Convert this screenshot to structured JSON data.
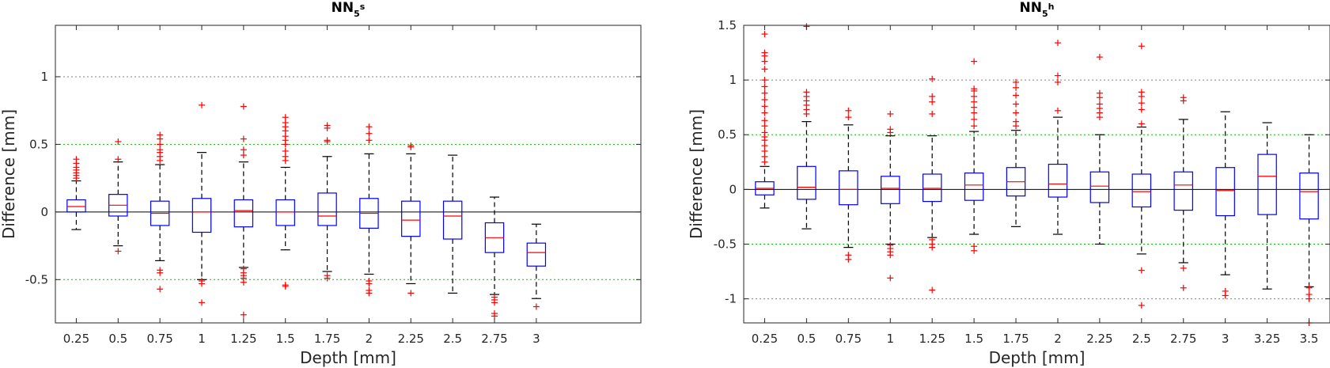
{
  "colors": {
    "box": "#0000ff",
    "median": "#ff0000",
    "outlier": "#ff0000",
    "whisker": "#000000",
    "grid_minor": "#00c000",
    "grid_major": "#808080",
    "axis": "#262626"
  },
  "chart_data": [
    {
      "type": "box",
      "title": {
        "base": "NN",
        "sub": "5",
        "sup": "s"
      },
      "xlabel": "Depth [mm]",
      "ylabel": "Difference [mm]",
      "ylim": [
        -0.82,
        1.38
      ],
      "yticks": [
        -0.5,
        0,
        0.5,
        1
      ],
      "ytick_labels": [
        "-0.5",
        "0",
        "0.5",
        "1"
      ],
      "grid_lines": [
        {
          "y": 1,
          "style": "major"
        },
        {
          "y": 0.5,
          "style": "minor"
        },
        {
          "y": -0.5,
          "style": "minor"
        }
      ],
      "zero_line": true,
      "slots": 14,
      "categories": [
        "0.25",
        "0.5",
        "0.75",
        "1",
        "1.25",
        "1.5",
        "1.75",
        "2",
        "2.25",
        "2.5",
        "2.75",
        "3"
      ],
      "boxes": [
        {
          "q1": 0.0,
          "median": 0.04,
          "q3": 0.09,
          "whisker_low": -0.13,
          "whisker_high": 0.23,
          "outliers": [
            0.25,
            0.27,
            0.29,
            0.31,
            0.33,
            0.36,
            0.39
          ]
        },
        {
          "q1": -0.03,
          "median": 0.05,
          "q3": 0.13,
          "whisker_low": -0.25,
          "whisker_high": 0.37,
          "outliers": [
            -0.29,
            0.39,
            0.52
          ]
        },
        {
          "q1": -0.1,
          "median": -0.01,
          "q3": 0.08,
          "whisker_low": -0.36,
          "whisker_high": 0.35,
          "outliers": [
            -0.43,
            -0.45,
            -0.57,
            0.38,
            0.41,
            0.44,
            0.46,
            0.5,
            0.54,
            0.57
          ]
        },
        {
          "q1": -0.15,
          "median": 0.0,
          "q3": 0.1,
          "whisker_low": -0.5,
          "whisker_high": 0.44,
          "outliers": [
            -0.51,
            -0.53,
            -0.67,
            0.79
          ]
        },
        {
          "q1": -0.11,
          "median": 0.01,
          "q3": 0.09,
          "whisker_low": -0.41,
          "whisker_high": 0.37,
          "outliers": [
            -0.42,
            -0.45,
            -0.47,
            -0.49,
            -0.52,
            -0.76,
            0.42,
            0.46,
            0.54,
            0.78
          ]
        },
        {
          "q1": -0.1,
          "median": 0.0,
          "q3": 0.09,
          "whisker_low": -0.28,
          "whisker_high": 0.33,
          "outliers": [
            -0.54,
            -0.55,
            0.38,
            0.41,
            0.45,
            0.5,
            0.53,
            0.56,
            0.6,
            0.63,
            0.66,
            0.7
          ]
        },
        {
          "q1": -0.1,
          "median": -0.03,
          "q3": 0.14,
          "whisker_low": -0.44,
          "whisker_high": 0.41,
          "outliers": [
            -0.47,
            -0.49,
            0.52,
            0.53,
            0.62,
            0.64
          ]
        },
        {
          "q1": -0.12,
          "median": -0.01,
          "q3": 0.1,
          "whisker_low": -0.46,
          "whisker_high": 0.43,
          "outliers": [
            -0.51,
            -0.53,
            -0.58,
            -0.6,
            0.53,
            0.58,
            0.63
          ]
        },
        {
          "q1": -0.18,
          "median": -0.06,
          "q3": 0.08,
          "whisker_low": -0.53,
          "whisker_high": 0.43,
          "outliers": [
            -0.6,
            0.48,
            0.49
          ]
        },
        {
          "q1": -0.2,
          "median": -0.03,
          "q3": 0.08,
          "whisker_low": -0.6,
          "whisker_high": 0.42,
          "outliers": []
        },
        {
          "q1": -0.3,
          "median": -0.19,
          "q3": -0.08,
          "whisker_low": -0.61,
          "whisker_high": 0.11,
          "outliers": [
            -0.63,
            -0.65,
            -0.67,
            -0.75,
            -0.77
          ]
        },
        {
          "q1": -0.4,
          "median": -0.3,
          "q3": -0.23,
          "whisker_low": -0.64,
          "whisker_high": -0.09,
          "outliers": [
            -0.7
          ]
        }
      ]
    },
    {
      "type": "box",
      "title": {
        "base": "NN",
        "sub": "5",
        "sup": "h"
      },
      "xlabel": "Depth [mm]",
      "ylabel": "Difference [mm]",
      "ylim": [
        -1.22,
        1.5
      ],
      "yticks": [
        -1,
        -0.5,
        0,
        0.5,
        1,
        1.5
      ],
      "ytick_labels": [
        "-1",
        "-0.5",
        "0",
        "0.5",
        "1",
        "1.5"
      ],
      "grid_lines": [
        {
          "y": 1.5,
          "style": "minor"
        },
        {
          "y": 1,
          "style": "major"
        },
        {
          "y": 0.5,
          "style": "minor"
        },
        {
          "y": -0.5,
          "style": "minor"
        },
        {
          "y": -1,
          "style": "major"
        }
      ],
      "zero_line": true,
      "slots": 14,
      "categories": [
        "0.25",
        "0.5",
        "0.75",
        "1",
        "1.25",
        "1.5",
        "1.75",
        "2",
        "2.25",
        "2.5",
        "2.75",
        "3",
        "3.25",
        "3.5"
      ],
      "boxes": [
        {
          "q1": -0.05,
          "median": 0.01,
          "q3": 0.07,
          "whisker_low": -0.17,
          "whisker_high": 0.21,
          "outliers": [
            0.25,
            0.3,
            0.35,
            0.4,
            0.45,
            0.48,
            0.52,
            0.58,
            0.63,
            0.7,
            0.76,
            0.82,
            0.88,
            0.94,
            1.0,
            1.1,
            1.17,
            1.22,
            1.25,
            1.42
          ]
        },
        {
          "q1": -0.09,
          "median": 0.02,
          "q3": 0.21,
          "whisker_low": -0.36,
          "whisker_high": 0.62,
          "outliers": [
            0.69,
            0.73,
            0.77,
            0.81,
            0.85,
            0.89,
            1.49
          ]
        },
        {
          "q1": -0.14,
          "median": 0.0,
          "q3": 0.17,
          "whisker_low": -0.53,
          "whisker_high": 0.59,
          "outliers": [
            -0.6,
            -0.64,
            0.66,
            0.72
          ]
        },
        {
          "q1": -0.13,
          "median": 0.01,
          "q3": 0.12,
          "whisker_low": -0.5,
          "whisker_high": 0.49,
          "outliers": [
            -0.51,
            -0.54,
            -0.57,
            -0.6,
            -0.81,
            0.52,
            0.55,
            0.69
          ]
        },
        {
          "q1": -0.11,
          "median": 0.01,
          "q3": 0.14,
          "whisker_low": -0.44,
          "whisker_high": 0.49,
          "outliers": [
            -0.46,
            -0.5,
            -0.53,
            -0.92,
            0.69,
            0.8,
            0.85,
            1.01
          ]
        },
        {
          "q1": -0.1,
          "median": 0.04,
          "q3": 0.15,
          "whisker_low": -0.41,
          "whisker_high": 0.53,
          "outliers": [
            -0.52,
            -0.56,
            0.58,
            0.64,
            0.7,
            0.75,
            0.8,
            0.85,
            0.9,
            0.92,
            1.17
          ]
        },
        {
          "q1": -0.06,
          "median": 0.07,
          "q3": 0.2,
          "whisker_low": -0.34,
          "whisker_high": 0.54,
          "outliers": [
            0.58,
            0.62,
            0.7,
            0.78,
            0.86,
            0.93,
            0.98
          ]
        },
        {
          "q1": -0.07,
          "median": 0.05,
          "q3": 0.23,
          "whisker_low": -0.41,
          "whisker_high": 0.66,
          "outliers": [
            0.72,
            0.98,
            1.04,
            1.34
          ]
        },
        {
          "q1": -0.12,
          "median": 0.03,
          "q3": 0.16,
          "whisker_low": -0.5,
          "whisker_high": 0.5,
          "outliers": [
            0.66,
            0.7,
            0.74,
            0.78,
            0.84,
            0.88,
            1.21
          ]
        },
        {
          "q1": -0.16,
          "median": -0.02,
          "q3": 0.14,
          "whisker_low": -0.59,
          "whisker_high": 0.57,
          "outliers": [
            -0.74,
            -1.06,
            0.6,
            0.73,
            0.79,
            0.85,
            0.89,
            1.31
          ]
        },
        {
          "q1": -0.19,
          "median": 0.04,
          "q3": 0.16,
          "whisker_low": -0.67,
          "whisker_high": 0.64,
          "outliers": [
            -0.72,
            -0.9,
            0.81,
            0.84
          ]
        },
        {
          "q1": -0.24,
          "median": -0.01,
          "q3": 0.2,
          "whisker_low": -0.78,
          "whisker_high": 0.71,
          "outliers": [
            -0.93,
            -0.97
          ]
        },
        {
          "q1": -0.23,
          "median": 0.12,
          "q3": 0.32,
          "whisker_low": -0.91,
          "whisker_high": 0.61,
          "outliers": []
        },
        {
          "q1": -0.27,
          "median": -0.02,
          "q3": 0.15,
          "whisker_low": -0.89,
          "whisker_high": 0.5,
          "outliers": [
            -0.9,
            -0.96,
            -1.0,
            -1.22
          ]
        }
      ]
    }
  ]
}
